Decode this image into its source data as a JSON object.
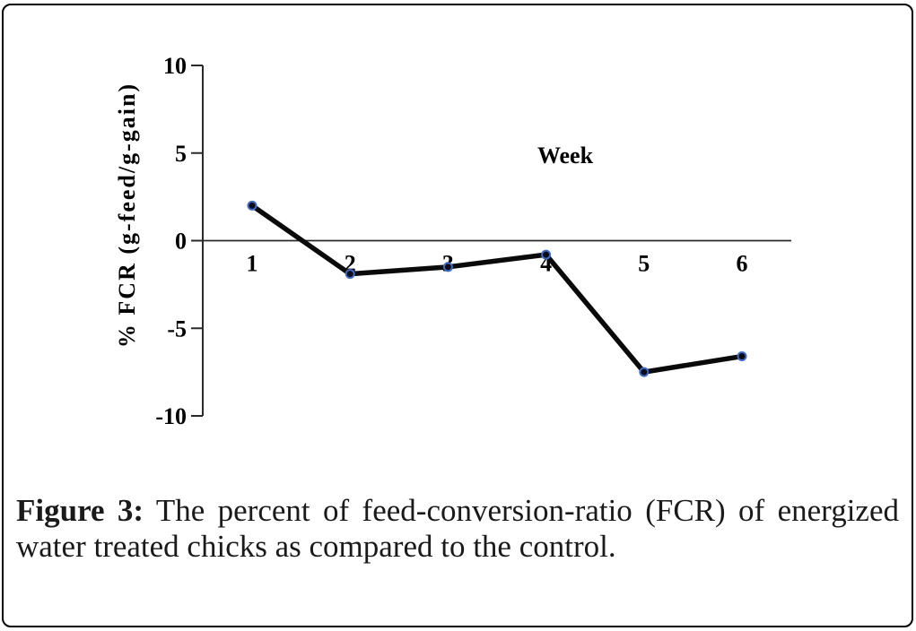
{
  "figure": {
    "caption": {
      "prefix": "Figure 3:",
      "line1_rest": "The percent of feed-conversion-ratio (FCR) of energized",
      "line2": "water treated chicks as compared to the control."
    }
  },
  "chart_data": {
    "type": "line",
    "xlabel": "Week",
    "ylabel": "% FCR (g-feed/g-gain)",
    "x": [
      1,
      2,
      3,
      4,
      5,
      6
    ],
    "values": [
      2,
      -1.9,
      -1.5,
      -0.8,
      -7.5,
      -6.6
    ],
    "yticks": [
      10,
      5,
      0,
      -5,
      -10
    ],
    "ylim": [
      -10,
      10
    ],
    "xlabel_position": "inside-plot-upper-right",
    "grid": false,
    "legend": false,
    "line_color": "#0a0a0a",
    "marker_fill": "#0b0b1a",
    "marker_edge": "#3f6bc4",
    "axis_color": "#2a2a2a",
    "tick_text_color": "#000000"
  }
}
